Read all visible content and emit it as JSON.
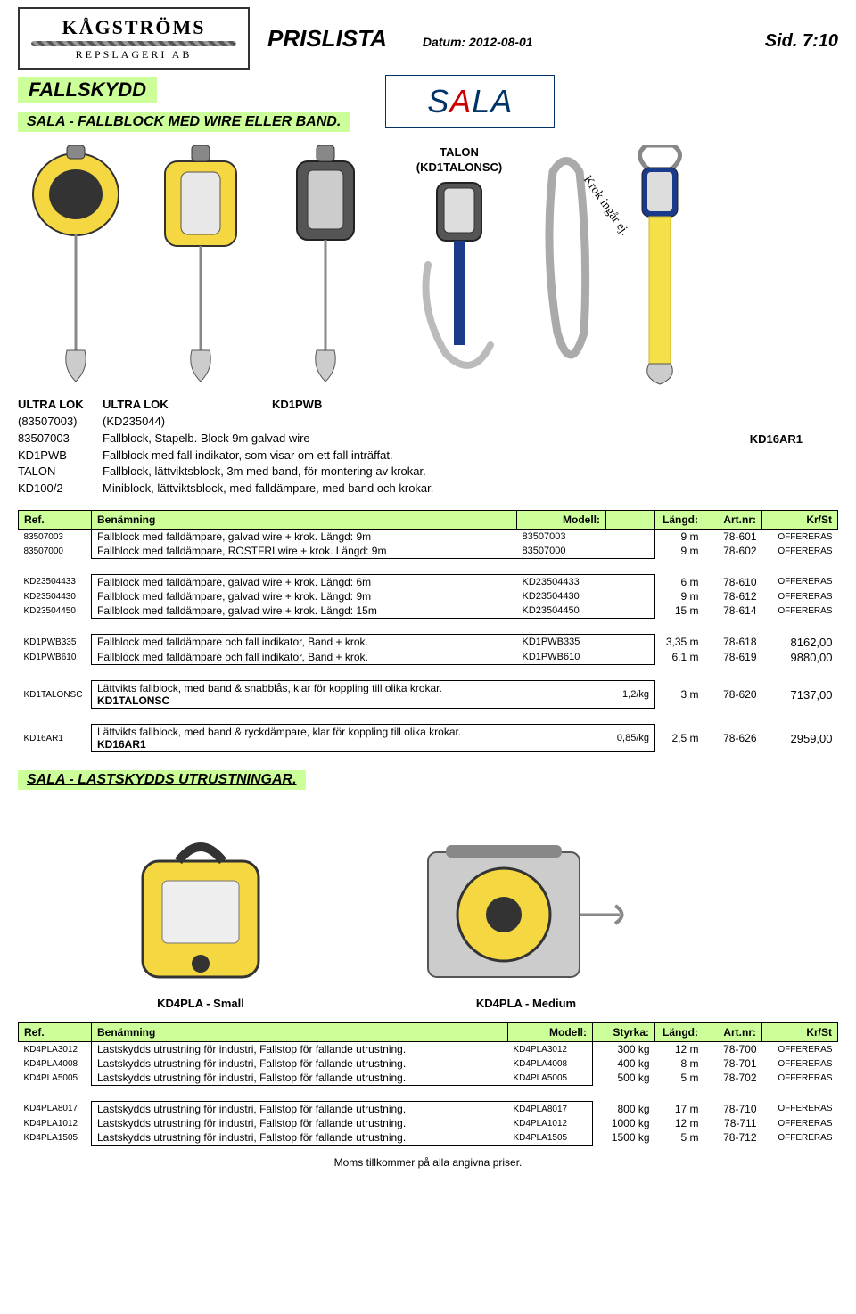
{
  "header": {
    "company_top": "KÅGSTRÖMS",
    "company_bottom": "REPSLAGERI AB",
    "prislista": "PRISLISTA",
    "datum_label": "Datum:",
    "datum_value": "2012-08-01",
    "sid_label": "Sid.",
    "sid_value": "7:10"
  },
  "category": "FALLSKYDD",
  "brand": "SALA",
  "section1_title": "SALA  -  FALLBLOCK MED WIRE ELLER BAND.",
  "talon": {
    "line1": "TALON",
    "line2": "(KD1TALONSC)"
  },
  "krok_text": "Krok ingår ej.",
  "kd16ar1_label": "KD16AR1",
  "intro": {
    "row1": {
      "c1": "ULTRA LOK",
      "c2": "ULTRA LOK",
      "c3": "KD1PWB"
    },
    "row2": {
      "c1": "(83507003)",
      "c2": "(KD235044)"
    },
    "codes": [
      {
        "code": "83507003",
        "text": "Fallblock, Stapelb. Block 9m galvad wire"
      },
      {
        "code": "KD1PWB",
        "text": "Fallblock med fall indikator, som visar om ett fall inträffat."
      },
      {
        "code": "TALON",
        "text": "Fallblock, lättviktsblock, 3m med band, för montering av krokar."
      },
      {
        "code": "KD100/2",
        "text": "Miniblock, lättviktsblock, med falldämpare, med band och krokar."
      }
    ]
  },
  "table1_headers": {
    "ref": "Ref.",
    "ben": "Benämning",
    "modell": "Modell:",
    "langd": "Längd:",
    "art": "Art.nr:",
    "kr": "Kr/St"
  },
  "groups": [
    [
      {
        "ref": "83507003",
        "desc": "Fallblock med falldämpare, galvad wire + krok.  Längd:   9m",
        "model": "83507003",
        "len": "9 m",
        "art": "78-601",
        "price": "OFFERERAS"
      },
      {
        "ref": "83507000",
        "desc": "Fallblock med falldämpare, ROSTFRI wire + krok.  Längd:   9m",
        "model": "83507000",
        "len": "9 m",
        "art": "78-602",
        "price": "OFFERERAS"
      }
    ],
    [
      {
        "ref": "KD23504433",
        "desc": "Fallblock med falldämpare, galvad wire + krok.  Längd:   6m",
        "model": "KD23504433",
        "len": "6 m",
        "art": "78-610",
        "price": "OFFERERAS"
      },
      {
        "ref": "KD23504430",
        "desc": "Fallblock med falldämpare, galvad wire + krok.  Längd:   9m",
        "model": "KD23504430",
        "len": "9 m",
        "art": "78-612",
        "price": "OFFERERAS"
      },
      {
        "ref": "KD23504450",
        "desc": "Fallblock med falldämpare, galvad wire + krok.  Längd: 15m",
        "model": "KD23504450",
        "len": "15 m",
        "art": "78-614",
        "price": "OFFERERAS"
      }
    ],
    [
      {
        "ref": "KD1PWB335",
        "desc": "Fallblock med falldämpare och fall indikator, Band + krok.",
        "model": "KD1PWB335",
        "len": "3,35 m",
        "art": "78-618",
        "price": "8162,00"
      },
      {
        "ref": "KD1PWB610",
        "desc": "Fallblock med falldämpare och fall indikator, Band + krok.",
        "model": "KD1PWB610",
        "len": "6,1 m",
        "art": "78-619",
        "price": "9880,00"
      }
    ],
    [
      {
        "ref": "KD1TALONSC",
        "desc": "Lättvikts fallblock, med band & snabblås, klar för koppling till olika krokar.",
        "model_b": "KD1TALONSC",
        "wt": "1,2/kg",
        "len": "3 m",
        "art": "78-620",
        "price": "7137,00"
      }
    ],
    [
      {
        "ref": "KD16AR1",
        "desc": "Lättvikts fallblock, med band & ryckdämpare, klar för koppling till olika krokar.",
        "model_b": "KD16AR1",
        "wt": "0,85/kg",
        "len": "2,5 m",
        "art": "78-626",
        "price": "2959,00"
      }
    ]
  ],
  "section2_title": "SALA  -  LASTSKYDDS UTRUSTNINGAR.",
  "img_captions": {
    "small": "KD4PLA - Small",
    "medium": "KD4PLA - Medium"
  },
  "table2_headers": {
    "ref": "Ref.",
    "ben": "Benämning",
    "modell": "Modell:",
    "styrka": "Styrka:",
    "langd": "Längd:",
    "art": "Art.nr:",
    "kr": "Kr/St"
  },
  "groups2": [
    [
      {
        "ref": "KD4PLA3012",
        "desc": "Lastskydds utrustning för industri, Fallstop för fallande utrustning.",
        "model": "KD4PLA3012",
        "styrka": "300 kg",
        "len": "12 m",
        "art": "78-700",
        "price": "OFFERERAS"
      },
      {
        "ref": "KD4PLA4008",
        "desc": "Lastskydds utrustning för industri, Fallstop för fallande utrustning.",
        "model": "KD4PLA4008",
        "styrka": "400 kg",
        "len": "8 m",
        "art": "78-701",
        "price": "OFFERERAS"
      },
      {
        "ref": "KD4PLA5005",
        "desc": "Lastskydds utrustning för industri, Fallstop för fallande utrustning.",
        "model": "KD4PLA5005",
        "styrka": "500 kg",
        "len": "5 m",
        "art": "78-702",
        "price": "OFFERERAS"
      }
    ],
    [
      {
        "ref": "KD4PLA8017",
        "desc": "Lastskydds utrustning för industri, Fallstop för fallande utrustning.",
        "model": "KD4PLA8017",
        "styrka": "800 kg",
        "len": "17 m",
        "art": "78-710",
        "price": "OFFERERAS"
      },
      {
        "ref": "KD4PLA1012",
        "desc": "Lastskydds utrustning för industri, Fallstop för fallande utrustning.",
        "model": "KD4PLA1012",
        "styrka": "1000 kg",
        "len": "12 m",
        "art": "78-711",
        "price": "OFFERERAS"
      },
      {
        "ref": "KD4PLA1505",
        "desc": "Lastskydds utrustning för industri, Fallstop för fallande utrustning.",
        "model": "KD4PLA1505",
        "styrka": "1500 kg",
        "len": "5 m",
        "art": "78-712",
        "price": "OFFERERAS"
      }
    ]
  ],
  "footer": "Moms tillkommer på alla angivna priser.",
  "colors": {
    "highlight": "#ccff99",
    "sala_blue": "#003366",
    "sala_red": "#cc0000",
    "device_yellow": "#f5d742",
    "device_gray": "#a8a8a8",
    "carabiner": "#cfcfcf"
  }
}
